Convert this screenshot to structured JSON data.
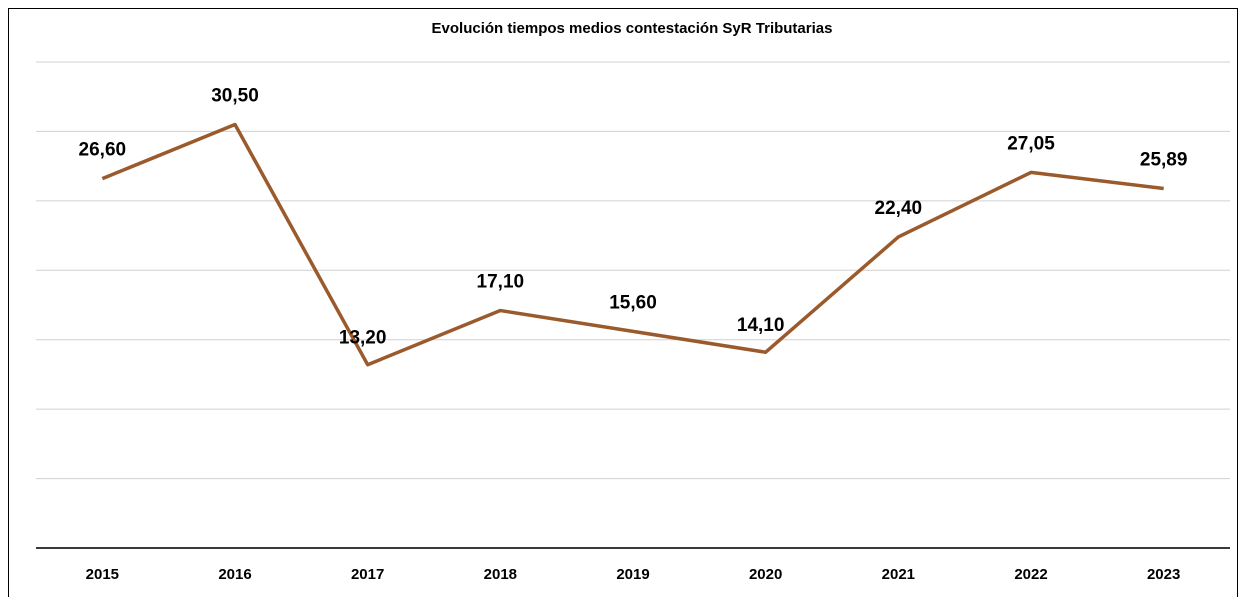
{
  "chart_data": {
    "type": "line",
    "title": "Evolución tiempos medios contestación SyR Tributarias",
    "categories": [
      "2015",
      "2016",
      "2017",
      "2018",
      "2019",
      "2020",
      "2021",
      "2022",
      "2023"
    ],
    "series": [
      {
        "color": "#9a5a2c",
        "values": [
          26.6,
          30.5,
          13.2,
          17.1,
          15.6,
          14.1,
          22.4,
          27.05,
          25.89
        ],
        "value_labels": [
          "26,60",
          "30,50",
          "13,20",
          "17,10",
          "15,60",
          "14,10",
          "22,40",
          "27,05",
          "25,89"
        ]
      }
    ],
    "ylim": [
      0,
      35
    ],
    "yticks": [
      0,
      5,
      10,
      15,
      20,
      25,
      30,
      35
    ],
    "grid": true
  }
}
